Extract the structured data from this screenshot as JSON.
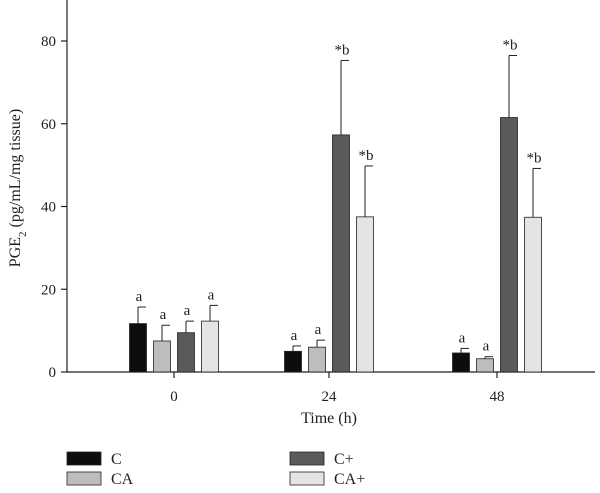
{
  "chart_data": {
    "type": "bar",
    "title": "",
    "xlabel": "Time (h)",
    "ylabel": {
      "main": "PGE",
      "sub": "2",
      "rest": " (pg/mL/mg tissue)"
    },
    "categories": [
      "0",
      "24",
      "48"
    ],
    "ylim": [
      0,
      90
    ],
    "yticks": [
      0,
      20,
      40,
      60,
      80
    ],
    "grid": false,
    "legend_position": "bottom",
    "series": [
      {
        "name": "C",
        "color": "#0d0d0d",
        "values": [
          11.7,
          5.0,
          4.6
        ],
        "errors": [
          4.0,
          1.3,
          1.1
        ],
        "labels": [
          "a",
          "a",
          "a"
        ]
      },
      {
        "name": "CA",
        "color": "#bdbdbd",
        "values": [
          7.5,
          6.0,
          3.2
        ],
        "errors": [
          3.8,
          1.7,
          0.5
        ],
        "labels": [
          "a",
          "a",
          "a"
        ]
      },
      {
        "name": "C+",
        "color": "#5a5a5a",
        "values": [
          9.5,
          57.3,
          61.5
        ],
        "errors": [
          2.8,
          18.0,
          15.0
        ],
        "labels": [
          "a",
          "*b",
          "*b"
        ]
      },
      {
        "name": "CA+",
        "color": "#e4e4e4",
        "values": [
          12.3,
          37.5,
          37.4
        ],
        "errors": [
          3.8,
          12.3,
          11.8
        ],
        "labels": [
          "a",
          "*b",
          "*b"
        ]
      }
    ]
  }
}
